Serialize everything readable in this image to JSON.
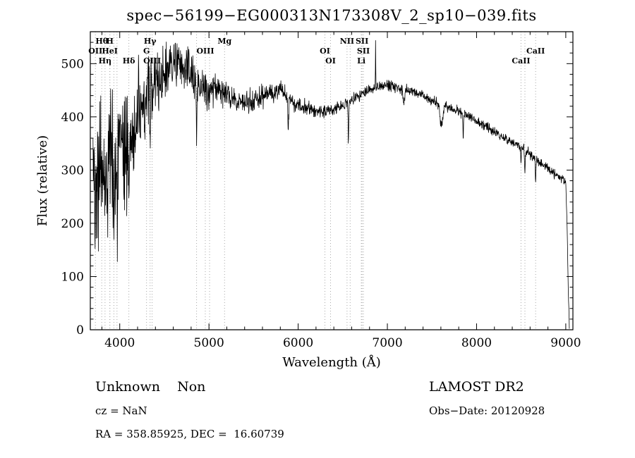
{
  "title": "spec−56199−EG000313N173308V_2_sp10−039.fits",
  "annotations": {
    "class_label": "Unknown    Non",
    "survey": "LAMOST DR2",
    "cz": "cz = NaN",
    "obs_date": "Obs−Date: 20120928",
    "ra_dec": "RA = 358.85925, DEC =  16.60739"
  },
  "chart_data": {
    "type": "line",
    "title": "spec−56199−EG000313N173308V_2_sp10−039.fits",
    "xlabel": "Wavelength (Å)",
    "ylabel": "Flux (relative)",
    "xlim": [
      3670,
      9080
    ],
    "ylim": [
      0,
      560
    ],
    "x_major_ticks": [
      4000,
      5000,
      6000,
      7000,
      8000,
      9000
    ],
    "y_major_ticks": [
      0,
      100,
      200,
      300,
      400,
      500
    ],
    "x_minor_step": 200,
    "y_minor_step": 20,
    "grid": false,
    "line_color": "#000000",
    "marker_line_color": "#a8a8a8",
    "continuum_points": [
      [
        3700,
        300
      ],
      [
        3750,
        295
      ],
      [
        3800,
        285
      ],
      [
        3850,
        300
      ],
      [
        3900,
        320
      ],
      [
        3950,
        325
      ],
      [
        4000,
        330
      ],
      [
        4050,
        340
      ],
      [
        4100,
        350
      ],
      [
        4150,
        365
      ],
      [
        4200,
        385
      ],
      [
        4250,
        410
      ],
      [
        4300,
        435
      ],
      [
        4350,
        455
      ],
      [
        4400,
        465
      ],
      [
        4450,
        470
      ],
      [
        4500,
        475
      ],
      [
        4550,
        490
      ],
      [
        4600,
        500
      ],
      [
        4650,
        498
      ],
      [
        4700,
        492
      ],
      [
        4750,
        488
      ],
      [
        4800,
        480
      ],
      [
        4850,
        468
      ],
      [
        4900,
        458
      ],
      [
        4950,
        452
      ],
      [
        5000,
        450
      ],
      [
        5050,
        452
      ],
      [
        5100,
        455
      ],
      [
        5150,
        450
      ],
      [
        5200,
        442
      ],
      [
        5300,
        430
      ],
      [
        5400,
        426
      ],
      [
        5500,
        432
      ],
      [
        5600,
        440
      ],
      [
        5700,
        446
      ],
      [
        5800,
        450
      ],
      [
        5900,
        432
      ],
      [
        6000,
        422
      ],
      [
        6100,
        416
      ],
      [
        6200,
        412
      ],
      [
        6300,
        410
      ],
      [
        6400,
        414
      ],
      [
        6500,
        420
      ],
      [
        6600,
        430
      ],
      [
        6700,
        443
      ],
      [
        6800,
        450
      ],
      [
        6900,
        456
      ],
      [
        7000,
        460
      ],
      [
        7100,
        456
      ],
      [
        7200,
        450
      ],
      [
        7300,
        446
      ],
      [
        7400,
        440
      ],
      [
        7500,
        432
      ],
      [
        7600,
        422
      ],
      [
        7700,
        416
      ],
      [
        7800,
        410
      ],
      [
        7900,
        402
      ],
      [
        8000,
        392
      ],
      [
        8100,
        382
      ],
      [
        8200,
        372
      ],
      [
        8300,
        362
      ],
      [
        8400,
        352
      ],
      [
        8500,
        342
      ],
      [
        8600,
        330
      ],
      [
        8700,
        316
      ],
      [
        8800,
        302
      ],
      [
        8900,
        290
      ],
      [
        8960,
        283
      ],
      [
        9000,
        278
      ],
      [
        9015,
        200
      ],
      [
        9030,
        60
      ],
      [
        9040,
        5
      ]
    ],
    "noise_profile": [
      [
        3700,
        150
      ],
      [
        3800,
        140
      ],
      [
        3900,
        125
      ],
      [
        4000,
        110
      ],
      [
        4100,
        100
      ],
      [
        4200,
        90
      ],
      [
        4300,
        75
      ],
      [
        4400,
        62
      ],
      [
        4500,
        52
      ],
      [
        4700,
        42
      ],
      [
        4900,
        34
      ],
      [
        5100,
        28
      ],
      [
        5400,
        22
      ],
      [
        5700,
        18
      ],
      [
        6000,
        15
      ],
      [
        6400,
        12
      ],
      [
        6800,
        11
      ],
      [
        7200,
        10
      ],
      [
        7600,
        10
      ],
      [
        8000,
        9
      ],
      [
        8400,
        9
      ],
      [
        8800,
        9
      ],
      [
        9040,
        8
      ]
    ],
    "features": [
      {
        "center": 3934,
        "width": 5,
        "amp": -140
      },
      {
        "center": 3969,
        "width": 5,
        "amp": -130
      },
      {
        "center": 4102,
        "width": 5,
        "amp": -115
      },
      {
        "center": 4340,
        "width": 5,
        "amp": -105
      },
      {
        "center": 4861,
        "width": 5,
        "amp": -95
      },
      {
        "center": 5890,
        "width": 6,
        "amp": -55
      },
      {
        "center": 6563,
        "width": 5,
        "amp": -75
      },
      {
        "center": 6868,
        "width": 3,
        "amp": 95
      },
      {
        "center": 7186,
        "width": 14,
        "amp": -22
      },
      {
        "center": 7605,
        "width": 22,
        "amp": -35
      },
      {
        "center": 7850,
        "width": 4,
        "amp": -55
      },
      {
        "center": 8498,
        "width": 5,
        "amp": -38
      },
      {
        "center": 8542,
        "width": 5,
        "amp": -48
      },
      {
        "center": 8662,
        "width": 5,
        "amp": -48
      }
    ],
    "spectral_lines": [
      {
        "wl": 3727,
        "label": "OII",
        "row": 2
      },
      {
        "wl": 3798,
        "label": "Hθ",
        "row": 1
      },
      {
        "wl": 3835,
        "label": "Hη",
        "row": 3
      },
      {
        "wl": 3889,
        "label": "H",
        "row": 1
      },
      {
        "wl": 3889,
        "label": "HeI",
        "row": 2
      },
      {
        "wl": 3934,
        "label": "",
        "row": 0
      },
      {
        "wl": 3969,
        "label": "",
        "row": 0
      },
      {
        "wl": 4102,
        "label": "Hδ",
        "row": 3
      },
      {
        "wl": 4300,
        "label": "G",
        "row": 2
      },
      {
        "wl": 4340,
        "label": "Hγ",
        "row": 1
      },
      {
        "wl": 4363,
        "label": "OIII",
        "row": 3
      },
      {
        "wl": 4861,
        "label": "",
        "row": 0
      },
      {
        "wl": 4959,
        "label": "OIII",
        "row": 2
      },
      {
        "wl": 5007,
        "label": "",
        "row": 0
      },
      {
        "wl": 5175,
        "label": "Mg",
        "row": 1
      },
      {
        "wl": 6300,
        "label": "OI",
        "row": 2
      },
      {
        "wl": 6363,
        "label": "OI",
        "row": 3
      },
      {
        "wl": 6548,
        "label": "NII",
        "row": 1
      },
      {
        "wl": 6583,
        "label": "",
        "row": 0
      },
      {
        "wl": 6708,
        "label": "Li",
        "row": 3
      },
      {
        "wl": 6716,
        "label": "SII",
        "row": 1
      },
      {
        "wl": 6731,
        "label": "SII",
        "row": 2
      },
      {
        "wl": 8498,
        "label": "CaII",
        "row": 3
      },
      {
        "wl": 8542,
        "label": "",
        "row": 0
      },
      {
        "wl": 8662,
        "label": "CaII",
        "row": 2
      }
    ]
  }
}
